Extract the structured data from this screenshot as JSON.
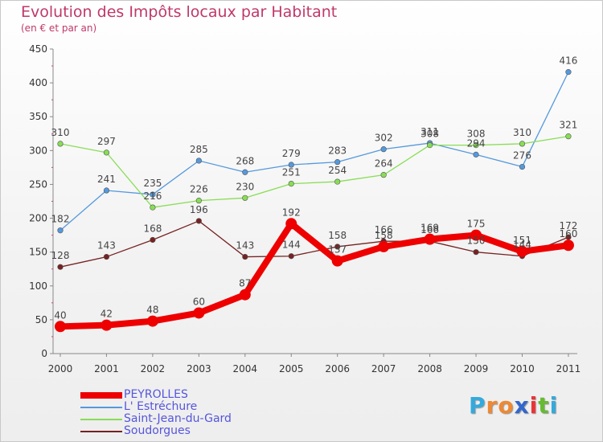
{
  "chart_data": {
    "type": "line",
    "title": "Evolution des Impôts locaux par Habitant",
    "subtitle": "(en € et par an)",
    "xlabel": "",
    "ylabel": "",
    "ylim": [
      0,
      450
    ],
    "yticks": [
      "0",
      "50",
      "100",
      "150",
      "200",
      "250",
      "300",
      "350",
      "400",
      "450"
    ],
    "categories": [
      "2000",
      "2001",
      "2002",
      "2003",
      "2004",
      "2005",
      "2006",
      "2007",
      "2008",
      "2009",
      "2010",
      "2011"
    ],
    "series": [
      {
        "name": "PEYROLLES",
        "color": "#ee0000",
        "values": [
          40,
          42,
          48,
          60,
          87,
          192,
          137,
          158,
          169,
          175,
          151,
          160
        ],
        "labels": [
          "40",
          "42",
          "48",
          "60",
          "87",
          "192",
          "137",
          "158",
          "169",
          "175",
          "151",
          "160"
        ]
      },
      {
        "name": "L' Estréchure",
        "color": "#5599dd",
        "values": [
          182,
          241,
          235,
          285,
          268,
          279,
          283,
          302,
          311,
          294,
          276,
          416
        ],
        "labels": [
          "182",
          "241",
          "235",
          "285",
          "268",
          "279",
          "283",
          "302",
          "311",
          "294",
          "276",
          "416"
        ]
      },
      {
        "name": "Saint-Jean-du-Gard",
        "color": "#88dd55",
        "values": [
          310,
          297,
          216,
          226,
          230,
          251,
          254,
          264,
          308,
          308,
          310,
          321
        ],
        "labels": [
          "310",
          "297",
          "216",
          "226",
          "230",
          "251",
          "254",
          "264",
          "308",
          "308",
          "310",
          "321"
        ]
      },
      {
        "name": "Soudorgues",
        "color": "#772222",
        "values": [
          128,
          143,
          168,
          196,
          143,
          144,
          158,
          166,
          166,
          150,
          144,
          172
        ],
        "labels": [
          "128",
          "143",
          "168",
          "196",
          "143",
          "144",
          "158",
          "166",
          "166",
          "150",
          "144",
          "172"
        ]
      }
    ],
    "legend_position": "bottom-left",
    "grid": false
  },
  "logo": {
    "letters": [
      "P",
      "r",
      "o",
      "x",
      "i",
      "t",
      "i"
    ],
    "colors": [
      "#33aadd",
      "#ee8833",
      "#ee8833",
      "#3366cc",
      "#ee3333",
      "#66bb33",
      "#33aadd"
    ]
  }
}
